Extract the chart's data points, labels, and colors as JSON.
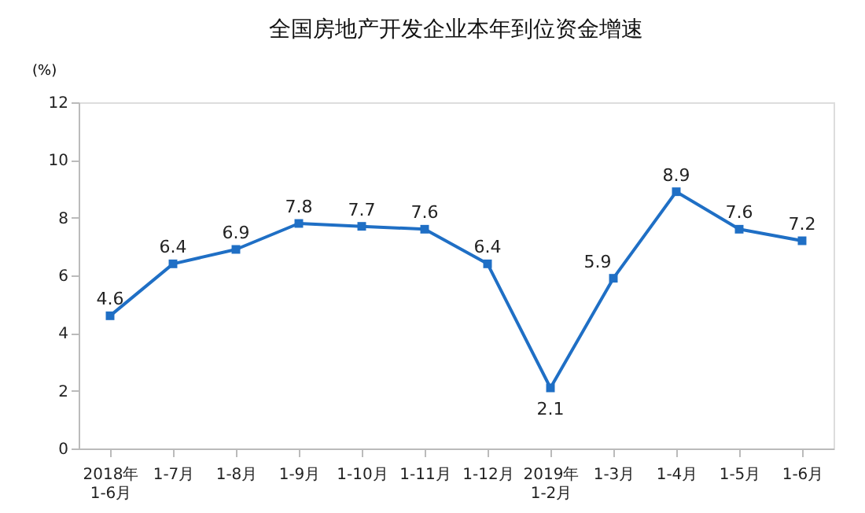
{
  "chart_data": {
    "type": "line",
    "title": "全国房地产开发企业本年到位资金增速",
    "ylabel": "(%)",
    "categories": [
      "2018年\n1-6月",
      "1-7月",
      "1-8月",
      "1-9月",
      "1-10月",
      "1-11月",
      "1-12月",
      "2019年\n1-2月",
      "1-3月",
      "1-4月",
      "1-5月",
      "1-6月"
    ],
    "series": [
      {
        "color": "#1f6fc5",
        "values": [
          4.6,
          6.4,
          6.9,
          7.8,
          7.7,
          7.6,
          6.4,
          2.1,
          5.9,
          8.9,
          7.6,
          7.2
        ]
      }
    ],
    "ylim": [
      0,
      12
    ],
    "yticks": [
      0,
      2,
      4,
      6,
      8,
      10,
      12
    ],
    "grid": false,
    "marker": "square",
    "line_style": "solid",
    "data_labels": true
  }
}
